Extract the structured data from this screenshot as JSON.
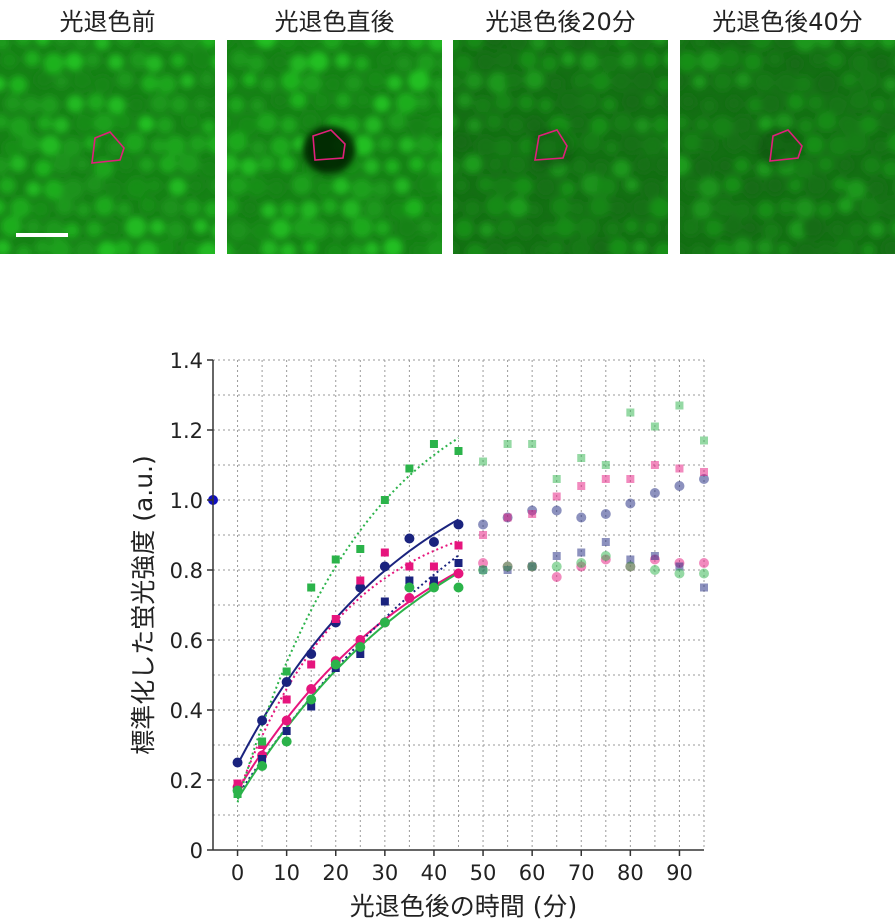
{
  "panels": [
    {
      "title": "光退色前",
      "region_state": "bright"
    },
    {
      "title": "光退色直後",
      "region_state": "dark"
    },
    {
      "title": "光退色後20分",
      "region_state": "dim"
    },
    {
      "title": "光退色後40分",
      "region_state": "dim"
    }
  ],
  "colors": {
    "navy": "#1a237e",
    "magenta": "#e6157d",
    "green": "#2bb34a",
    "cell_green": "#1f9a1f",
    "roi": "#e0207a"
  },
  "chart_data": {
    "type": "scatter",
    "xlabel": "光退色後の時間 (分)",
    "ylabel": "標準化した蛍光強度 (a.u.)",
    "xlim": [
      -5,
      95
    ],
    "ylim": [
      0,
      1.4
    ],
    "xticks": [
      "0",
      "10",
      "20",
      "30",
      "40",
      "50",
      "60",
      "70",
      "80",
      "90"
    ],
    "yticks": [
      "0",
      "0.2",
      "0.4",
      "0.6",
      "0.8",
      "1.0",
      "1.2",
      "1.4"
    ],
    "grid": true,
    "reference_point": {
      "x": -5,
      "y": 1.0,
      "color": "#1010c0"
    },
    "series": [
      {
        "marker": "circle",
        "color": "#1a237e",
        "fit": "solid",
        "x": [
          0,
          5,
          10,
          15,
          20,
          25,
          30,
          35,
          40,
          45,
          50,
          55,
          60,
          65,
          70,
          75,
          80,
          85,
          90,
          95
        ],
        "y": [
          0.25,
          0.37,
          0.48,
          0.56,
          0.65,
          0.75,
          0.81,
          0.89,
          0.88,
          0.93,
          0.93,
          0.95,
          0.97,
          0.97,
          0.95,
          0.96,
          0.99,
          1.02,
          1.04,
          1.06
        ]
      },
      {
        "marker": "square",
        "color": "#e6157d",
        "fit": "dotted",
        "x": [
          0,
          5,
          10,
          15,
          20,
          25,
          30,
          35,
          40,
          45,
          50,
          55,
          60,
          65,
          70,
          75,
          80,
          85,
          90,
          95
        ],
        "y": [
          0.19,
          0.3,
          0.43,
          0.53,
          0.66,
          0.77,
          0.85,
          0.81,
          0.81,
          0.87,
          0.9,
          0.95,
          0.96,
          1.01,
          1.04,
          1.06,
          1.06,
          1.1,
          1.09,
          1.08
        ]
      },
      {
        "marker": "circle",
        "color": "#e6157d",
        "fit": "solid",
        "x": [
          0,
          5,
          10,
          15,
          20,
          25,
          30,
          35,
          40,
          45,
          50,
          55,
          60,
          65,
          70,
          75,
          80,
          85,
          90,
          95
        ],
        "y": [
          0.18,
          0.27,
          0.37,
          0.46,
          0.54,
          0.6,
          0.65,
          0.72,
          0.76,
          0.79,
          0.82,
          0.81,
          0.81,
          0.78,
          0.81,
          0.83,
          0.81,
          0.83,
          0.82,
          0.82
        ]
      },
      {
        "marker": "square",
        "color": "#1a237e",
        "fit": "dotted",
        "x": [
          0,
          5,
          10,
          15,
          20,
          25,
          30,
          35,
          40,
          45,
          50,
          55,
          60,
          65,
          70,
          75,
          80,
          85,
          90,
          95
        ],
        "y": [
          0.17,
          0.26,
          0.34,
          0.41,
          0.52,
          0.56,
          0.71,
          0.77,
          0.77,
          0.82,
          0.8,
          0.8,
          0.81,
          0.84,
          0.85,
          0.88,
          0.83,
          0.84,
          0.81,
          0.75
        ]
      },
      {
        "marker": "circle",
        "color": "#2bb34a",
        "fit": "solid",
        "x": [
          0,
          5,
          10,
          15,
          20,
          25,
          30,
          35,
          40,
          45,
          50,
          55,
          60,
          65,
          70,
          75,
          80,
          85,
          90,
          95
        ],
        "y": [
          0.17,
          0.24,
          0.31,
          0.43,
          0.53,
          0.58,
          0.65,
          0.75,
          0.75,
          0.75,
          0.8,
          0.81,
          0.81,
          0.81,
          0.82,
          0.84,
          0.81,
          0.8,
          0.79,
          0.79
        ]
      },
      {
        "marker": "square",
        "color": "#2bb34a",
        "fit": "dotted",
        "x": [
          0,
          5,
          10,
          15,
          20,
          25,
          30,
          35,
          40,
          45,
          50,
          55,
          60,
          65,
          70,
          75,
          80,
          85,
          90,
          95
        ],
        "y": [
          0.16,
          0.31,
          0.51,
          0.75,
          0.83,
          0.86,
          1.0,
          1.09,
          1.16,
          1.14,
          1.11,
          1.16,
          1.16,
          1.06,
          1.12,
          1.1,
          1.25,
          1.21,
          1.27,
          1.17
        ]
      }
    ]
  }
}
